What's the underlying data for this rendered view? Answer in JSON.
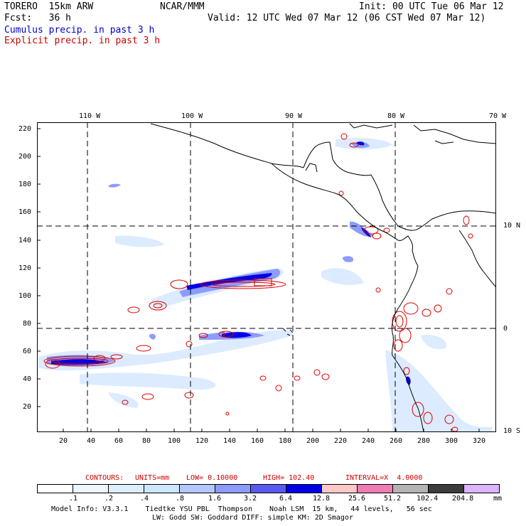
{
  "header": {
    "model": "TORERO  15km ARW",
    "org": "NCAR/MMM",
    "init": "Init: 00 UTC Tue 06 Mar 12",
    "fcst": "Fcst:   36 h",
    "valid": "Valid: 12 UTC Wed 07 Mar 12 (06 CST Wed 07 Mar 12)",
    "cumulus": "Cumulus precip. in past 3 h",
    "explicit": "Explicit precip. in past 3 h"
  },
  "colors": {
    "cumulus": "#0000cc",
    "explicit": "#cc0000"
  },
  "map": {
    "top_labels": [
      "110 W",
      "100 W",
      "90 W",
      "80 W",
      "70 W"
    ],
    "right_labels": [
      "10 N",
      "0",
      "10 S"
    ],
    "y_ticks": [
      "220",
      "200",
      "180",
      "160",
      "140",
      "120",
      "100",
      "80",
      "60",
      "40",
      "20"
    ],
    "x_ticks": [
      "20",
      "40",
      "60",
      "80",
      "100",
      "120",
      "140",
      "160",
      "180",
      "200",
      "220",
      "240",
      "260",
      "280",
      "300",
      "320"
    ]
  },
  "contours": {
    "label": "CONTOURS:",
    "units": "UNITS=mm",
    "low": "LOW= 0.10000",
    "high": "HIGH= 102.40",
    "interval": "INTERVAL=X  4.0000"
  },
  "legend": {
    "labels": [
      ".1",
      ".2",
      ".4",
      ".8",
      "1.6",
      "3.2",
      "6.4",
      "12.8",
      "25.6",
      "51.2",
      "102.4",
      "204.8"
    ],
    "unit": "mm",
    "colors": [
      "#ffffff",
      "#eef5ff",
      "#ddeeff",
      "#cce6ff",
      "#b4c8ff",
      "#8c9cff",
      "#5a5af0",
      "#0000e6",
      "#ffc8c8",
      "#f07cb4",
      "#b4b4b4",
      "#3c3c3c",
      "#dcb4ff"
    ]
  },
  "footer": {
    "line1": "Model Info: V3.3.1    Tiedtke YSU PBL  Thompson    Noah LSM  15 km,   44 levels,   56 sec",
    "line2": "LW: Godd SW: Goddard DIFF: simple KM: 2D Smagor"
  }
}
